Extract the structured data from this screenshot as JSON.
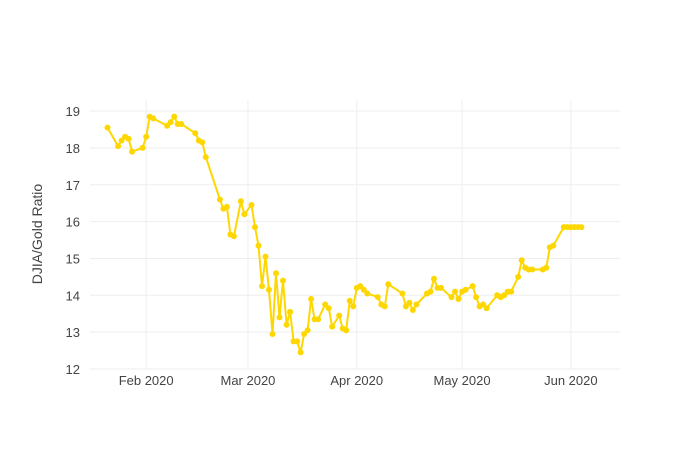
{
  "chart_data": {
    "type": "line",
    "title": "",
    "xlabel": "",
    "ylabel": "DJIA/Gold Ratio",
    "ylim": [
      12,
      19.3
    ],
    "xlim": [
      "2020-01-16",
      "2020-06-15"
    ],
    "grid": true,
    "line_color": "#FFD700",
    "grid_color": "#eeeeee",
    "x_ticks": [
      {
        "date": "2020-02-01",
        "label": "Feb 2020"
      },
      {
        "date": "2020-03-01",
        "label": "Mar 2020"
      },
      {
        "date": "2020-04-01",
        "label": "Apr 2020"
      },
      {
        "date": "2020-05-01",
        "label": "May 2020"
      },
      {
        "date": "2020-06-01",
        "label": "Jun 2020"
      }
    ],
    "y_ticks": [
      12,
      13,
      14,
      15,
      16,
      17,
      18,
      19
    ],
    "series": [
      {
        "name": "DJIA/Gold Ratio",
        "x": [
          "2020-01-21",
          "2020-01-24",
          "2020-01-25",
          "2020-01-26",
          "2020-01-27",
          "2020-01-28",
          "2020-01-31",
          "2020-02-01",
          "2020-02-02",
          "2020-02-03",
          "2020-02-07",
          "2020-02-08",
          "2020-02-09",
          "2020-02-10",
          "2020-02-11",
          "2020-02-15",
          "2020-02-16",
          "2020-02-17",
          "2020-02-18",
          "2020-02-22",
          "2020-02-23",
          "2020-02-24",
          "2020-02-25",
          "2020-02-26",
          "2020-02-28",
          "2020-02-29",
          "2020-03-02",
          "2020-03-03",
          "2020-03-04",
          "2020-03-05",
          "2020-03-06",
          "2020-03-07",
          "2020-03-08",
          "2020-03-09",
          "2020-03-10",
          "2020-03-11",
          "2020-03-12",
          "2020-03-13",
          "2020-03-14",
          "2020-03-15",
          "2020-03-16",
          "2020-03-17",
          "2020-03-18",
          "2020-03-19",
          "2020-03-20",
          "2020-03-21",
          "2020-03-23",
          "2020-03-24",
          "2020-03-25",
          "2020-03-27",
          "2020-03-28",
          "2020-03-29",
          "2020-03-30",
          "2020-03-31",
          "2020-04-01",
          "2020-04-02",
          "2020-04-03",
          "2020-04-04",
          "2020-04-07",
          "2020-04-08",
          "2020-04-09",
          "2020-04-10",
          "2020-04-14",
          "2020-04-15",
          "2020-04-16",
          "2020-04-17",
          "2020-04-18",
          "2020-04-21",
          "2020-04-22",
          "2020-04-23",
          "2020-04-24",
          "2020-04-25",
          "2020-04-28",
          "2020-04-29",
          "2020-04-30",
          "2020-05-01",
          "2020-05-02",
          "2020-05-04",
          "2020-05-05",
          "2020-05-06",
          "2020-05-07",
          "2020-05-08",
          "2020-05-11",
          "2020-05-12",
          "2020-05-13",
          "2020-05-14",
          "2020-05-15",
          "2020-05-17",
          "2020-05-18",
          "2020-05-19",
          "2020-05-20",
          "2020-05-21",
          "2020-05-24",
          "2020-05-25",
          "2020-05-26",
          "2020-05-27",
          "2020-05-30",
          "2020-05-31",
          "2020-06-01",
          "2020-06-02",
          "2020-06-03",
          "2020-06-04"
        ],
        "y": [
          18.55,
          18.05,
          18.2,
          18.3,
          18.25,
          17.9,
          18.0,
          18.3,
          18.85,
          18.8,
          18.6,
          18.7,
          18.85,
          18.65,
          18.65,
          18.4,
          18.2,
          18.15,
          17.75,
          16.6,
          16.35,
          16.4,
          15.65,
          15.6,
          16.55,
          16.2,
          16.45,
          15.85,
          15.35,
          14.25,
          15.05,
          14.15,
          12.95,
          14.6,
          13.4,
          14.4,
          13.2,
          13.55,
          12.75,
          12.75,
          12.45,
          12.95,
          13.05,
          13.9,
          13.35,
          13.35,
          13.75,
          13.65,
          13.15,
          13.45,
          13.1,
          13.05,
          13.85,
          13.7,
          14.2,
          14.25,
          14.15,
          14.05,
          13.95,
          13.75,
          13.7,
          14.3,
          14.05,
          13.7,
          13.8,
          13.6,
          13.75,
          14.05,
          14.1,
          14.45,
          14.2,
          14.2,
          13.95,
          14.1,
          13.9,
          14.1,
          14.15,
          14.25,
          13.95,
          13.7,
          13.75,
          13.65,
          14.0,
          13.95,
          14.0,
          14.1,
          14.1,
          14.5,
          14.95,
          14.75,
          14.7,
          14.7,
          14.7,
          14.75,
          15.3,
          15.35,
          15.85,
          15.85,
          15.85,
          15.85,
          15.85,
          15.85
        ]
      }
    ]
  }
}
